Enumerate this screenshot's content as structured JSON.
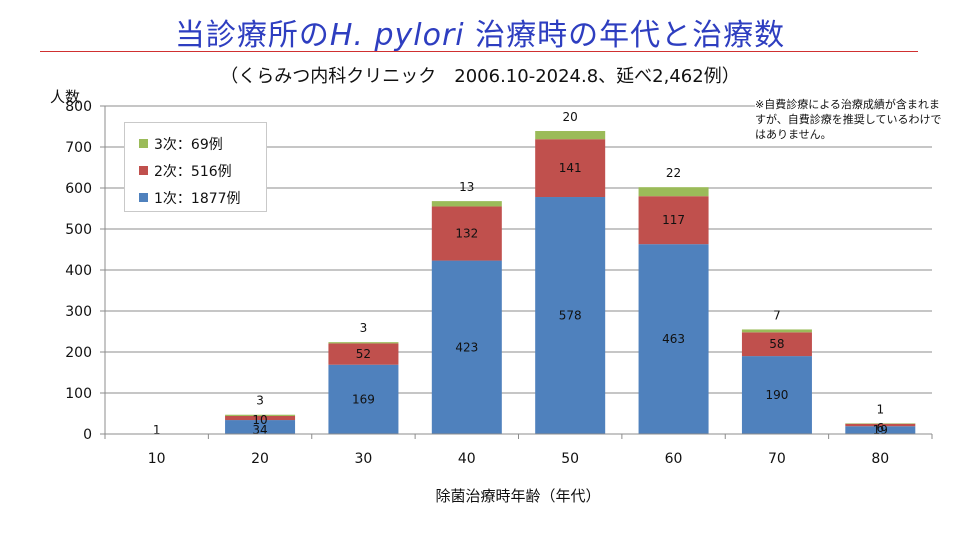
{
  "title": {
    "before": "当診療所の",
    "italic": "H. pylori",
    "after": " 治療時の年代と治療数"
  },
  "subtitle": "（くらみつ内科クリニック　2006.10-2024.8、延べ2,462例）",
  "note": "※自費診療による治療成績が含まれますが、自費診療を推奨しているわけではありません。",
  "colors": {
    "first": "#4f81bd",
    "second": "#c0504d",
    "third": "#9bbb59",
    "title": "#2e3ec0",
    "rule": "#d03030",
    "grid": "#8c8c8c"
  },
  "chart_data": {
    "type": "bar",
    "stacked": true,
    "categories": [
      "10",
      "20",
      "30",
      "40",
      "50",
      "60",
      "70",
      "80"
    ],
    "series": [
      {
        "name": "1次：1877例",
        "values": [
          1,
          34,
          169,
          423,
          578,
          463,
          190,
          19
        ]
      },
      {
        "name": "2次：516例",
        "values": [
          0,
          10,
          52,
          132,
          141,
          117,
          58,
          6
        ]
      },
      {
        "name": "3次：69例",
        "values": [
          0,
          3,
          3,
          13,
          20,
          22,
          7,
          1
        ]
      }
    ],
    "data_labels": {
      "1次：1877例": [
        "1",
        "34",
        "169",
        "423",
        "578",
        "463",
        "190",
        "19"
      ],
      "2次：516例": [
        "",
        "10",
        "52",
        "132",
        "141",
        "117",
        "58",
        "6"
      ],
      "3次：69例": [
        "",
        "3",
        "3",
        "13",
        "20",
        "22",
        "7",
        "1"
      ]
    },
    "xlabel": "除菌治療時年齢（年代）",
    "ylabel": "人数",
    "ylim": [
      0,
      800
    ],
    "yticks": [
      0,
      100,
      200,
      300,
      400,
      500,
      600,
      700,
      800
    ],
    "grid": true,
    "legend_position": "top-left"
  }
}
